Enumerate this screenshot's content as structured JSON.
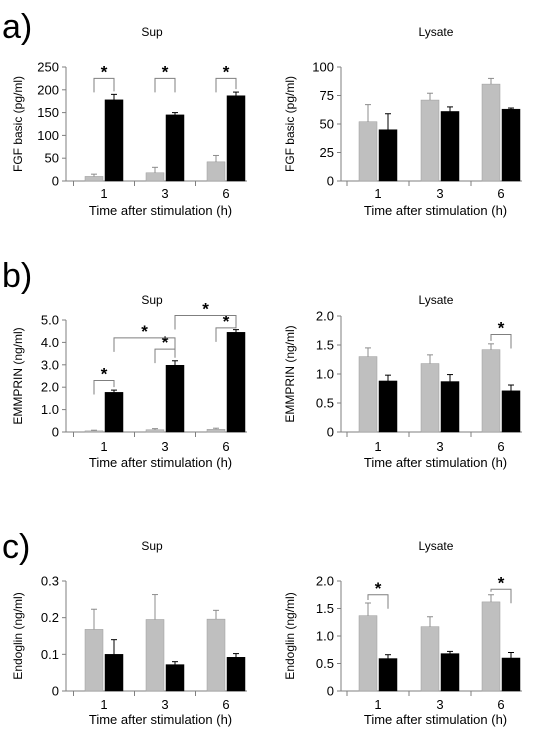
{
  "figure": {
    "colors": {
      "grey_bar": "#bfbfbf",
      "black_bar": "#000000",
      "axis": "#7f7f7f"
    },
    "panels": [
      {
        "letter": "a)",
        "chart_data": [
          {
            "type": "bar",
            "title": "Sup",
            "ylabel": "FGF basic (pg/ml)",
            "xlabel": "Time after stimulation (h)",
            "categories": [
              "1",
              "3",
              "6"
            ],
            "ylim": [
              0,
              250
            ],
            "yticks": [
              "0",
              "50",
              "100",
              "150",
              "200",
              "250"
            ],
            "series": [
              {
                "values": [
                  10,
                  18,
                  42
                ],
                "errors": [
                  5,
                  12,
                  14
                ]
              },
              {
                "values": [
                  178,
                  145,
                  187
                ],
                "errors": [
                  12,
                  5,
                  8
                ]
              }
            ],
            "significance": [
              {
                "label": "*",
                "from": [
                  0,
                  0
                ],
                "to": [
                  0,
                  1
                ],
                "level": 225
              },
              {
                "label": "*",
                "from": [
                  1,
                  0
                ],
                "to": [
                  1,
                  1
                ],
                "level": 225
              },
              {
                "label": "*",
                "from": [
                  2,
                  0
                ],
                "to": [
                  2,
                  1
                ],
                "level": 225
              }
            ]
          },
          {
            "type": "bar",
            "title": "Lysate",
            "ylabel": "FGF basic (pg/ml)",
            "xlabel": "Time after stimulation (h)",
            "categories": [
              "1",
              "3",
              "6"
            ],
            "ylim": [
              0,
              100
            ],
            "yticks": [
              "0",
              "25",
              "50",
              "75",
              "100"
            ],
            "series": [
              {
                "values": [
                  52,
                  71,
                  85
                ],
                "errors": [
                  15,
                  6,
                  5
                ]
              },
              {
                "values": [
                  45,
                  61,
                  63
                ],
                "errors": [
                  14,
                  4,
                  1
                ]
              }
            ],
            "significance": []
          }
        ]
      },
      {
        "letter": "b)",
        "chart_data": [
          {
            "type": "bar",
            "title": "Sup",
            "ylabel": "EMMPRIN (ng/ml)",
            "xlabel": "Time after stimulation (h)",
            "categories": [
              "1",
              "3",
              "6"
            ],
            "ylim": [
              0,
              5.0
            ],
            "yticks": [
              "0",
              "1.0",
              "2.0",
              "3.0",
              "4.0",
              "5.0"
            ],
            "series": [
              {
                "values": [
                  0.05,
                  0.1,
                  0.12
                ],
                "errors": [
                  0.03,
                  0.05,
                  0.05
                ]
              },
              {
                "values": [
                  1.77,
                  2.98,
                  4.45
                ],
                "errors": [
                  0.1,
                  0.2,
                  0.12
                ]
              }
            ],
            "significance": [
              {
                "label": "*",
                "from": [
                  0,
                  0
                ],
                "to": [
                  0,
                  1
                ],
                "level": 2.3
              },
              {
                "label": "*",
                "from": [
                  1,
                  0
                ],
                "to": [
                  1,
                  1
                ],
                "level": 3.7
              },
              {
                "label": "*",
                "from": [
                  2,
                  0
                ],
                "to": [
                  2,
                  1
                ],
                "level": 4.65
              },
              {
                "label": "*",
                "from": [
                  0,
                  1
                ],
                "to": [
                  1,
                  1
                ],
                "level": 4.2
              },
              {
                "label": "*",
                "from": [
                  1,
                  1
                ],
                "to": [
                  2,
                  1
                ],
                "level": 5.2
              }
            ]
          },
          {
            "type": "bar",
            "title": "Lysate",
            "ylabel": "EMMPRIN (ng/ml)",
            "xlabel": "Time after stimulation (h)",
            "categories": [
              "1",
              "3",
              "6"
            ],
            "ylim": [
              0,
              2.0
            ],
            "yticks": [
              "0",
              "0.5",
              "1.0",
              "1.5",
              "2.0"
            ],
            "series": [
              {
                "values": [
                  1.3,
                  1.18,
                  1.42
                ],
                "errors": [
                  0.15,
                  0.15,
                  0.1
                ]
              },
              {
                "values": [
                  0.88,
                  0.87,
                  0.71
                ],
                "errors": [
                  0.1,
                  0.12,
                  0.1
                ]
              }
            ],
            "significance": [
              {
                "label": "*",
                "from": [
                  2,
                  0
                ],
                "to": [
                  2,
                  1
                ],
                "level": 1.68
              }
            ]
          }
        ]
      },
      {
        "letter": "c)",
        "chart_data": [
          {
            "type": "bar",
            "title": "Sup",
            "ylabel": "Endoglin (ng/ml)",
            "xlabel": "Time after stimulation (h)",
            "categories": [
              "1",
              "3",
              "6"
            ],
            "ylim": [
              0,
              0.3
            ],
            "yticks": [
              "0",
              "0.1",
              "0.2",
              "0.3"
            ],
            "series": [
              {
                "values": [
                  0.168,
                  0.195,
                  0.196
                ],
                "errors": [
                  0.055,
                  0.068,
                  0.024
                ]
              },
              {
                "values": [
                  0.1,
                  0.072,
                  0.092
                ],
                "errors": [
                  0.04,
                  0.008,
                  0.01
                ]
              }
            ],
            "significance": []
          },
          {
            "type": "bar",
            "title": "Lysate",
            "ylabel": "Endoglin (ng/ml)",
            "xlabel": "Time after stimulation (h)",
            "categories": [
              "1",
              "3",
              "6"
            ],
            "ylim": [
              0,
              2.0
            ],
            "yticks": [
              "0",
              "0.5",
              "1.0",
              "1.5",
              "2.0"
            ],
            "series": [
              {
                "values": [
                  1.37,
                  1.17,
                  1.62
                ],
                "errors": [
                  0.23,
                  0.18,
                  0.13
                ]
              },
              {
                "values": [
                  0.59,
                  0.68,
                  0.6
                ],
                "errors": [
                  0.07,
                  0.04,
                  0.1
                ]
              }
            ],
            "significance": [
              {
                "label": "*",
                "from": [
                  0,
                  0
                ],
                "to": [
                  0,
                  1
                ],
                "level": 1.75
              },
              {
                "label": "*",
                "from": [
                  2,
                  0
                ],
                "to": [
                  2,
                  1
                ],
                "level": 1.85
              }
            ]
          }
        ]
      }
    ]
  }
}
